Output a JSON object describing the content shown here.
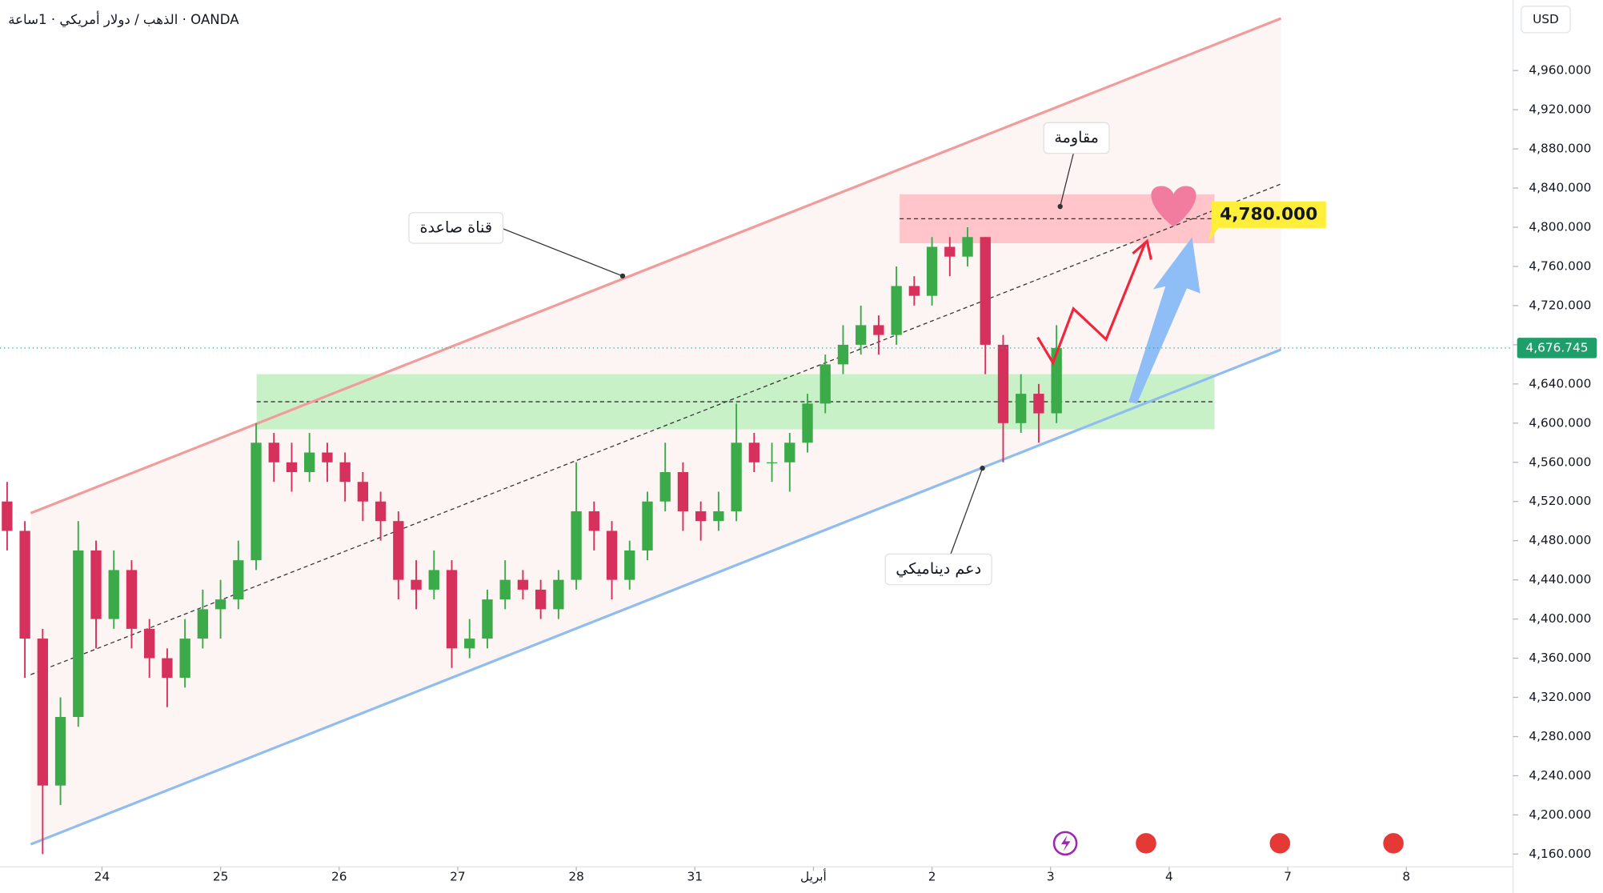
{
  "chart_data": {
    "type": "candlestick",
    "title": "الذهب / دولار أمريكي · 1ساعة · OANDA",
    "currency": "USD",
    "up_color": "#3bab4a",
    "down_color": "#d6305c",
    "ylim": [
      4147,
      5032
    ],
    "xlim": [
      -0.86,
      11.9
    ],
    "yticks": [
      {
        "value": 4160,
        "label": "4,160.000"
      },
      {
        "value": 4200,
        "label": "4,200.000"
      },
      {
        "value": 4240,
        "label": "4,240.000"
      },
      {
        "value": 4280,
        "label": "4,280.000"
      },
      {
        "value": 4320,
        "label": "4,320.000"
      },
      {
        "value": 4360,
        "label": "4,360.000"
      },
      {
        "value": 4400,
        "label": "4,400.000"
      },
      {
        "value": 4440,
        "label": "4,440.000"
      },
      {
        "value": 4480,
        "label": "4,480.000"
      },
      {
        "value": 4520,
        "label": "4,520.000"
      },
      {
        "value": 4560,
        "label": "4,560.000"
      },
      {
        "value": 4600,
        "label": "4,600.000"
      },
      {
        "value": 4640,
        "label": "4,640.000"
      },
      {
        "value": 4680,
        "label": "4,680.000"
      },
      {
        "value": 4720,
        "label": "4,720.000"
      },
      {
        "value": 4760,
        "label": "4,760.000"
      },
      {
        "value": 4800,
        "label": "4,800.000"
      },
      {
        "value": 4840,
        "label": "4,840.000"
      },
      {
        "value": 4880,
        "label": "4,880.000"
      },
      {
        "value": 4920,
        "label": "4,920.000"
      },
      {
        "value": 4960,
        "label": "4,960.000"
      }
    ],
    "xticks": [
      {
        "value": 0,
        "label": "24"
      },
      {
        "value": 1,
        "label": "25"
      },
      {
        "value": 2,
        "label": "26"
      },
      {
        "value": 3,
        "label": "27"
      },
      {
        "value": 4,
        "label": "28"
      },
      {
        "value": 5,
        "label": "31"
      },
      {
        "value": 6,
        "label": "أبريل"
      },
      {
        "value": 7,
        "label": "2"
      },
      {
        "value": 8,
        "label": "3"
      },
      {
        "value": 9,
        "label": "4"
      },
      {
        "value": 10,
        "label": "7"
      },
      {
        "value": 11,
        "label": "8"
      }
    ],
    "x": [
      -0.8,
      -0.65,
      -0.5,
      -0.35,
      -0.2,
      -0.05,
      0.1,
      0.25,
      0.4,
      0.55,
      0.7,
      0.85,
      1.0,
      1.15,
      1.3,
      1.45,
      1.6,
      1.75,
      1.9,
      2.05,
      2.2,
      2.35,
      2.5,
      2.65,
      2.8,
      2.95,
      3.1,
      3.25,
      3.4,
      3.55,
      3.7,
      3.85,
      4.0,
      4.15,
      4.3,
      4.45,
      4.6,
      4.75,
      4.9,
      5.05,
      5.2,
      5.35,
      5.5,
      5.65,
      5.8,
      5.95,
      6.1,
      6.25,
      6.4,
      6.55,
      6.7,
      6.85,
      7.0,
      7.15,
      7.3,
      7.45,
      7.6,
      7.75,
      7.9,
      8.05
    ],
    "candles": [
      [
        4520,
        4540,
        4470,
        4490
      ],
      [
        4490,
        4500,
        4340,
        4380
      ],
      [
        4380,
        4390,
        4160,
        4230
      ],
      [
        4230,
        4320,
        4210,
        4300
      ],
      [
        4300,
        4500,
        4290,
        4470
      ],
      [
        4470,
        4480,
        4370,
        4400
      ],
      [
        4400,
        4470,
        4390,
        4450
      ],
      [
        4450,
        4460,
        4370,
        4390
      ],
      [
        4390,
        4400,
        4340,
        4360
      ],
      [
        4360,
        4370,
        4310,
        4340
      ],
      [
        4340,
        4400,
        4330,
        4380
      ],
      [
        4380,
        4430,
        4370,
        4410
      ],
      [
        4410,
        4440,
        4380,
        4420
      ],
      [
        4420,
        4480,
        4410,
        4460
      ],
      [
        4460,
        4600,
        4450,
        4580
      ],
      [
        4580,
        4590,
        4540,
        4560
      ],
      [
        4560,
        4580,
        4530,
        4550
      ],
      [
        4550,
        4590,
        4540,
        4570
      ],
      [
        4570,
        4580,
        4540,
        4560
      ],
      [
        4560,
        4570,
        4520,
        4540
      ],
      [
        4540,
        4550,
        4500,
        4520
      ],
      [
        4520,
        4530,
        4480,
        4500
      ],
      [
        4500,
        4510,
        4420,
        4440
      ],
      [
        4440,
        4460,
        4410,
        4430
      ],
      [
        4430,
        4470,
        4420,
        4450
      ],
      [
        4450,
        4460,
        4350,
        4370
      ],
      [
        4370,
        4400,
        4360,
        4380
      ],
      [
        4380,
        4430,
        4370,
        4420
      ],
      [
        4420,
        4460,
        4410,
        4440
      ],
      [
        4440,
        4450,
        4420,
        4430
      ],
      [
        4430,
        4440,
        4400,
        4410
      ],
      [
        4410,
        4450,
        4400,
        4440
      ],
      [
        4440,
        4560,
        4430,
        4510
      ],
      [
        4510,
        4520,
        4470,
        4490
      ],
      [
        4490,
        4500,
        4420,
        4440
      ],
      [
        4440,
        4480,
        4430,
        4470
      ],
      [
        4470,
        4530,
        4460,
        4520
      ],
      [
        4520,
        4580,
        4510,
        4550
      ],
      [
        4550,
        4560,
        4490,
        4510
      ],
      [
        4510,
        4520,
        4480,
        4500
      ],
      [
        4500,
        4530,
        4490,
        4510
      ],
      [
        4510,
        4620,
        4500,
        4580
      ],
      [
        4580,
        4590,
        4550,
        4560
      ],
      [
        4560,
        4580,
        4540,
        4560
      ],
      [
        4560,
        4590,
        4530,
        4580
      ],
      [
        4580,
        4630,
        4570,
        4620
      ],
      [
        4620,
        4670,
        4610,
        4660
      ],
      [
        4660,
        4700,
        4650,
        4680
      ],
      [
        4680,
        4720,
        4670,
        4700
      ],
      [
        4700,
        4710,
        4670,
        4690
      ],
      [
        4690,
        4760,
        4680,
        4740
      ],
      [
        4740,
        4750,
        4720,
        4730
      ],
      [
        4730,
        4790,
        4720,
        4780
      ],
      [
        4780,
        4790,
        4750,
        4770
      ],
      [
        4770,
        4800,
        4760,
        4790
      ],
      [
        4790,
        4790,
        4650,
        4680
      ],
      [
        4680,
        4690,
        4560,
        4600
      ],
      [
        4600,
        4650,
        4590,
        4630
      ],
      [
        4630,
        4640,
        4580,
        4610
      ],
      [
        4610,
        4700,
        4600,
        4676.745
      ]
    ],
    "last_price": {
      "value": 4676.745,
      "label": "4,676.745"
    },
    "annotations": {
      "channel": "قناة صاعدة",
      "resistance": "مقاومة",
      "support": "دعم ديناميكي",
      "target": {
        "value": 4780,
        "label": "4,780.000"
      }
    }
  }
}
